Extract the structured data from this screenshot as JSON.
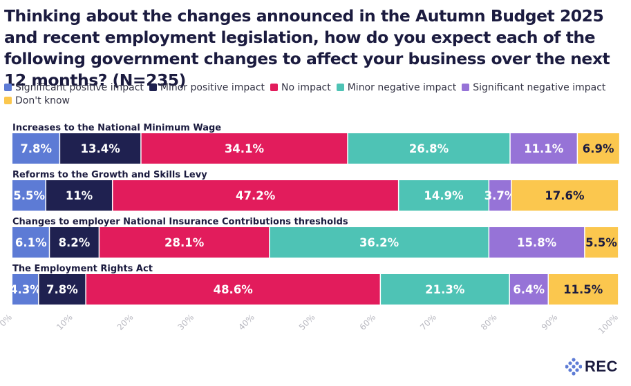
{
  "chart_data": {
    "type": "bar",
    "orientation": "horizontal-stacked-100",
    "title": "Thinking about the changes announced in the Autumn Budget 2025 and recent employment legislation, how do you expect each of the following government changes to affect your business over the next 12 months? (N=235)",
    "legend_position": "top-left",
    "series": [
      {
        "name": "Significant positive impact",
        "color": "#5d7bd5"
      },
      {
        "name": "Minor positive impact",
        "color": "#1f2150"
      },
      {
        "name": "No impact",
        "color": "#e21c5c"
      },
      {
        "name": "Minor negative impact",
        "color": "#4ec3b5"
      },
      {
        "name": "Significant negative impact",
        "color": "#9673d7"
      },
      {
        "name": "Don't know",
        "color": "#fbc74e"
      }
    ],
    "categories": [
      "Increases to the National Minimum Wage",
      "Reforms to the Growth and Skills Levy",
      "Changes to employer National Insurance Contributions thresholds",
      "The Employment Rights Act"
    ],
    "values": [
      [
        7.8,
        13.4,
        34.1,
        26.8,
        11.1,
        6.9
      ],
      [
        5.5,
        11,
        47.2,
        14.9,
        3.7,
        17.6
      ],
      [
        6.1,
        8.2,
        28.1,
        36.2,
        15.8,
        5.5
      ],
      [
        4.3,
        7.8,
        48.6,
        21.3,
        6.4,
        11.5
      ]
    ],
    "labels": [
      [
        "7.8%",
        "13.4%",
        "34.1%",
        "26.8%",
        "11.1%",
        "6.9%"
      ],
      [
        "5.5%",
        "11%",
        "47.2%",
        "14.9%",
        "3.7%",
        "17.6%"
      ],
      [
        "6.1%",
        "8.2%",
        "28.1%",
        "36.2%",
        "15.8%",
        "5.5%"
      ],
      [
        "4.3%",
        "7.8%",
        "48.6%",
        "21.3%",
        "6.4%",
        "11.5%"
      ]
    ],
    "xlim": [
      0,
      100
    ],
    "xticks": [
      "0%",
      "10%",
      "20%",
      "30%",
      "40%",
      "50%",
      "60%",
      "70%",
      "80%",
      "90%",
      "100%"
    ],
    "text_colors": [
      "#ffffff",
      "#ffffff",
      "#ffffff",
      "#ffffff",
      "#ffffff",
      "#1b1b3f"
    ]
  },
  "logo": {
    "text": "REC",
    "color": "#5d7bd5"
  }
}
